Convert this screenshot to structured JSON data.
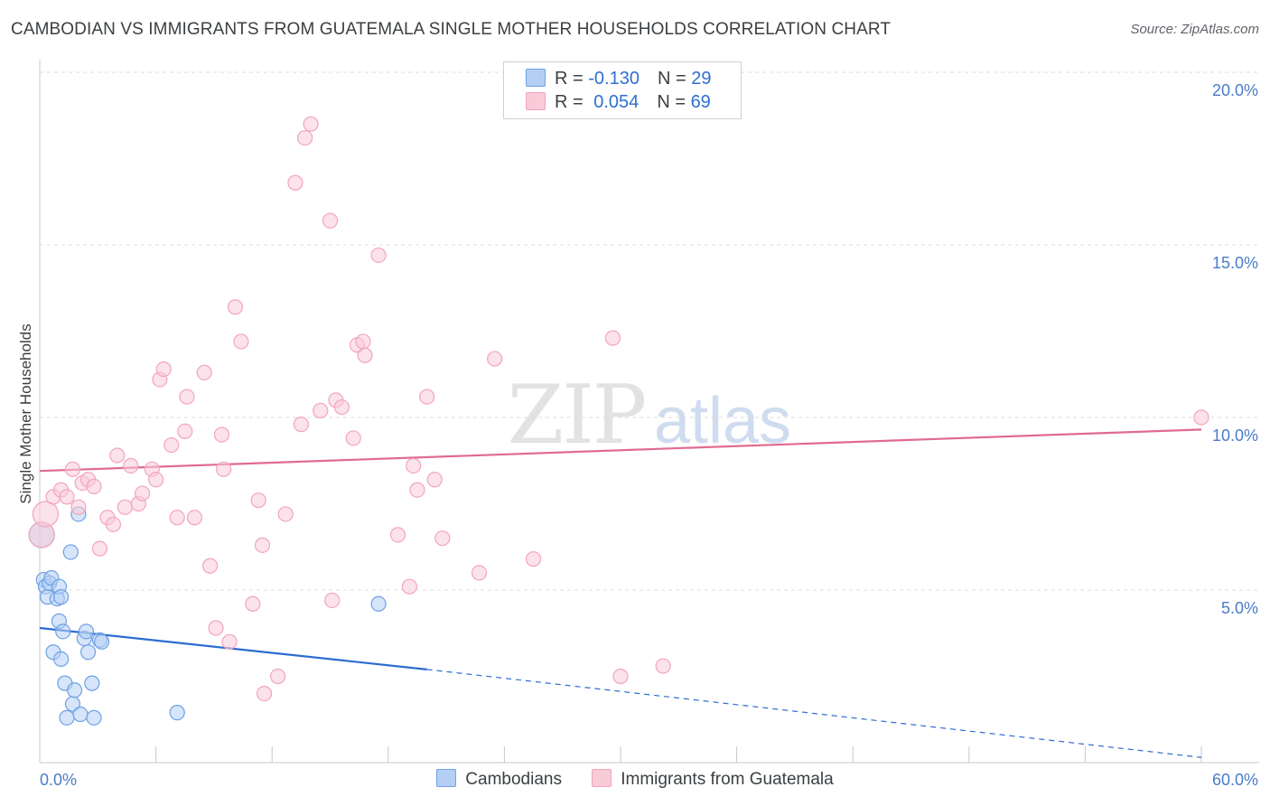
{
  "title": "CAMBODIAN VS IMMIGRANTS FROM GUATEMALA SINGLE MOTHER HOUSEHOLDS CORRELATION CHART",
  "source": "Source: ZipAtlas.com",
  "watermark": {
    "zip": "ZIP",
    "atlas": "atlas"
  },
  "legend_top": [
    {
      "r_label": "R = ",
      "r_value": "-0.130",
      "n_label": "N = ",
      "n_value": "29"
    },
    {
      "r_label": "R = ",
      "r_value": "0.054",
      "n_label": "N = ",
      "n_value": "69"
    }
  ],
  "chart_data": {
    "type": "scatter",
    "xlabel": "",
    "ylabel": "Single Mother Households",
    "xlim": [
      0,
      60
    ],
    "ylim": [
      0,
      20
    ],
    "x_tick_labels": [
      "0.0%",
      "60.0%"
    ],
    "y_ticks": [
      5,
      10,
      15,
      20
    ],
    "y_tick_labels": [
      "5.0%",
      "10.0%",
      "15.0%",
      "20.0%"
    ],
    "grid": true,
    "legend_position": "bottom",
    "series": [
      {
        "name": "Cambodians",
        "color": "#6fa0e6",
        "fill": "#b5cff4",
        "line_color": "#2d6cd0",
        "r": -0.13,
        "n": 29,
        "trend": {
          "x": [
            0,
            20
          ],
          "y": [
            3.9,
            2.7
          ],
          "dashed_to": [
            60,
            0.15
          ]
        },
        "points": [
          [
            0.1,
            6.6
          ],
          [
            0.2,
            5.3
          ],
          [
            0.3,
            5.1
          ],
          [
            0.4,
            4.8
          ],
          [
            0.5,
            5.2
          ],
          [
            0.6,
            5.35
          ],
          [
            0.9,
            4.75
          ],
          [
            1.0,
            5.1
          ],
          [
            1.1,
            4.8
          ],
          [
            1.0,
            4.1
          ],
          [
            1.2,
            3.8
          ],
          [
            0.7,
            3.2
          ],
          [
            1.1,
            3.0
          ],
          [
            1.3,
            2.3
          ],
          [
            1.4,
            1.3
          ],
          [
            1.6,
            6.1
          ],
          [
            1.7,
            1.7
          ],
          [
            1.8,
            2.1
          ],
          [
            2.0,
            7.2
          ],
          [
            2.1,
            1.4
          ],
          [
            2.3,
            3.6
          ],
          [
            2.4,
            3.8
          ],
          [
            2.5,
            3.2
          ],
          [
            2.7,
            2.3
          ],
          [
            2.8,
            1.3
          ],
          [
            3.1,
            3.55
          ],
          [
            3.2,
            3.5
          ],
          [
            7.1,
            1.45
          ],
          [
            17.5,
            4.6
          ]
        ]
      },
      {
        "name": "Immigrants from Guatemala",
        "color": "#f2a5bd",
        "fill": "#f9cbd9",
        "line_color": "#e06a92",
        "r": 0.054,
        "n": 69,
        "trend": {
          "x": [
            0,
            60
          ],
          "y": [
            8.45,
            9.65
          ]
        },
        "points": [
          [
            0.1,
            6.6
          ],
          [
            0.3,
            7.2
          ],
          [
            0.7,
            7.7
          ],
          [
            1.1,
            7.9
          ],
          [
            1.4,
            7.7
          ],
          [
            1.7,
            8.5
          ],
          [
            2.0,
            7.4
          ],
          [
            2.2,
            8.1
          ],
          [
            2.5,
            8.2
          ],
          [
            2.8,
            8.0
          ],
          [
            3.1,
            6.2
          ],
          [
            3.5,
            7.1
          ],
          [
            3.8,
            6.9
          ],
          [
            4.0,
            8.9
          ],
          [
            4.4,
            7.4
          ],
          [
            4.7,
            8.6
          ],
          [
            5.1,
            7.5
          ],
          [
            5.3,
            7.8
          ],
          [
            5.8,
            8.5
          ],
          [
            6.0,
            8.2
          ],
          [
            6.2,
            11.1
          ],
          [
            6.4,
            11.4
          ],
          [
            6.8,
            9.2
          ],
          [
            7.1,
            7.1
          ],
          [
            7.5,
            9.6
          ],
          [
            7.6,
            10.6
          ],
          [
            8.0,
            7.1
          ],
          [
            8.5,
            11.3
          ],
          [
            8.8,
            5.7
          ],
          [
            9.1,
            3.9
          ],
          [
            9.4,
            9.5
          ],
          [
            9.5,
            8.5
          ],
          [
            9.8,
            3.5
          ],
          [
            10.1,
            13.2
          ],
          [
            10.4,
            12.2
          ],
          [
            11.0,
            4.6
          ],
          [
            11.3,
            7.6
          ],
          [
            11.5,
            6.3
          ],
          [
            11.6,
            2.0
          ],
          [
            12.3,
            2.5
          ],
          [
            12.7,
            7.2
          ],
          [
            13.2,
            16.8
          ],
          [
            13.5,
            9.8
          ],
          [
            13.7,
            18.1
          ],
          [
            14.0,
            18.5
          ],
          [
            14.5,
            10.2
          ],
          [
            15.0,
            15.7
          ],
          [
            15.1,
            4.7
          ],
          [
            15.3,
            10.5
          ],
          [
            15.6,
            10.3
          ],
          [
            16.2,
            9.4
          ],
          [
            16.4,
            12.1
          ],
          [
            16.7,
            12.2
          ],
          [
            16.8,
            11.8
          ],
          [
            17.5,
            14.7
          ],
          [
            18.5,
            6.6
          ],
          [
            19.1,
            5.1
          ],
          [
            19.3,
            8.6
          ],
          [
            19.5,
            7.9
          ],
          [
            20.0,
            10.6
          ],
          [
            20.4,
            8.2
          ],
          [
            20.8,
            6.5
          ],
          [
            22.7,
            5.5
          ],
          [
            23.5,
            11.7
          ],
          [
            25.5,
            5.9
          ],
          [
            29.6,
            12.3
          ],
          [
            30.0,
            2.5
          ],
          [
            32.2,
            2.8
          ],
          [
            60.0,
            10.0
          ]
        ]
      }
    ]
  }
}
